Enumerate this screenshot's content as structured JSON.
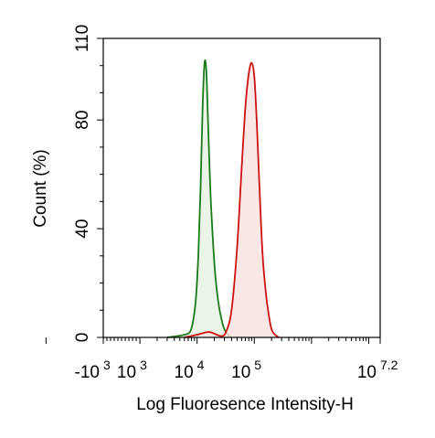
{
  "chart_data": {
    "type": "area",
    "title": "",
    "xlabel": "Log Fluoresence Intensity-H",
    "ylabel": "Count  (%)",
    "x_scale": "biexponential",
    "xlim": [
      -1000,
      15848932
    ],
    "ylim": [
      0,
      110
    ],
    "grid": false,
    "legend": "none",
    "x_ticks": [
      {
        "base": "-10",
        "exp": "3",
        "value": -1000
      },
      {
        "base": "10",
        "exp": "3",
        "value": 1000
      },
      {
        "base": "10",
        "exp": "4",
        "value": 10000
      },
      {
        "base": "10",
        "exp": "5",
        "value": 100000
      },
      {
        "base": "10",
        "exp": "7.2",
        "value": 15848932
      }
    ],
    "y_ticks": [
      "0",
      "40",
      "80",
      "110"
    ],
    "series": [
      {
        "color": "#1a7a1a",
        "fill": "#e6f2e3",
        "x": [
          3000,
          4500,
          6000,
          7500,
          8500,
          9500,
          10500,
          11500,
          12500,
          13500,
          14500,
          15500,
          17000,
          19000,
          21000,
          23500,
          26500,
          30000,
          35000,
          40000
        ],
        "y": [
          0,
          0.5,
          1,
          2,
          6,
          14,
          30,
          55,
          85,
          101,
          98,
          80,
          55,
          35,
          22,
          13,
          7,
          3,
          1,
          0
        ]
      },
      {
        "color": "#cc1111",
        "fill": "#fbe3e3",
        "x": [
          6000,
          10000,
          16000,
          22000,
          27000,
          32000,
          40000,
          50000,
          60000,
          70000,
          80000,
          90000,
          100000,
          110000,
          125000,
          140000,
          160000,
          180000,
          200000,
          230000,
          270000
        ],
        "y": [
          0,
          1,
          2,
          1,
          0.5,
          2,
          10,
          33,
          62,
          85,
          97,
          101,
          96,
          80,
          52,
          30,
          16,
          8,
          3,
          1,
          0
        ]
      }
    ]
  }
}
